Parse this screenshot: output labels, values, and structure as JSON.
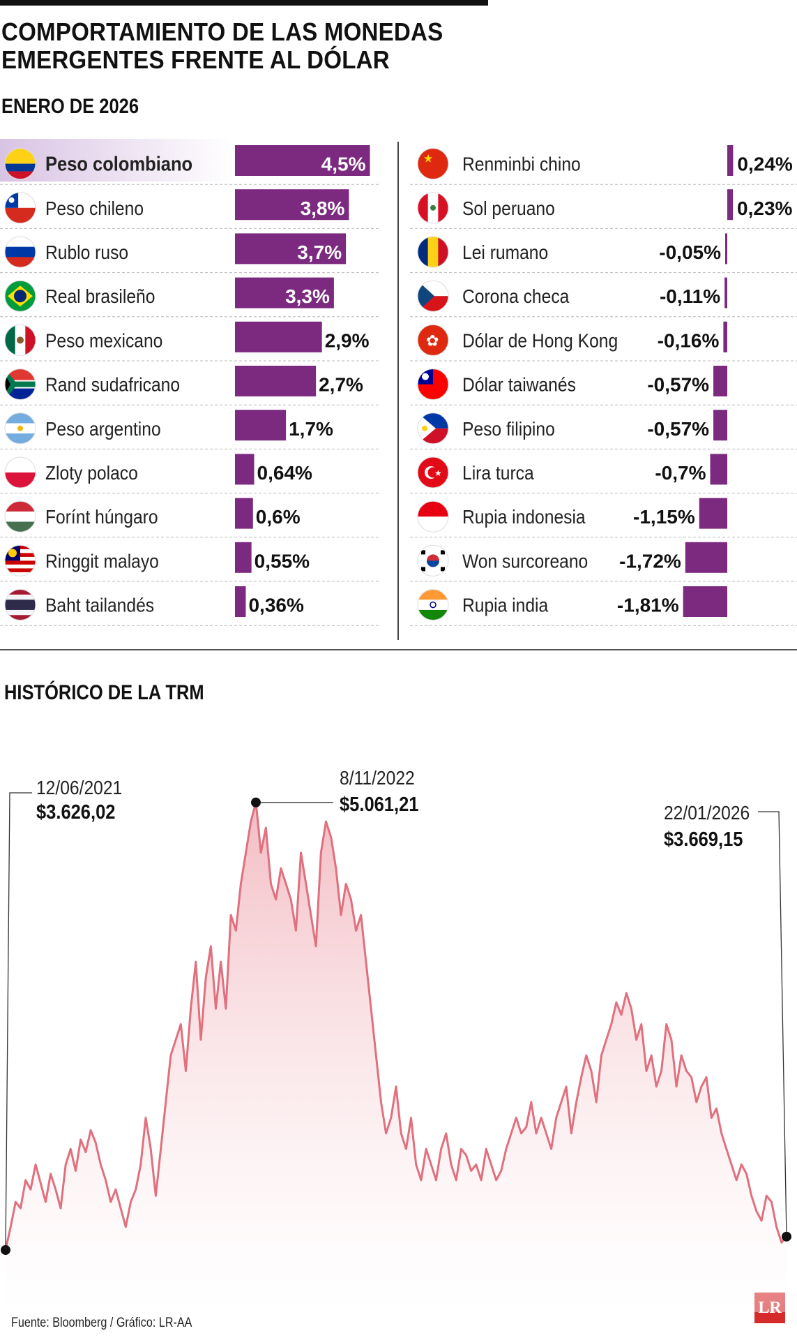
{
  "header": {
    "title_line1": "COMPORTAMIENTO DE LAS MONEDAS",
    "title_line2": "EMERGENTES FRENTE AL DÓLAR",
    "subtitle": "ENERO DE 2026"
  },
  "section2_title": "HISTÓRICO DE LA TRM",
  "source": "Fuente: Bloomberg / Gráfico: LR-AA",
  "logo_text": "LR",
  "colors": {
    "bar": "#7b2a80",
    "highlight": "#d9c3e3",
    "line": "#e0707e",
    "area": "#f2b9c0"
  },
  "chart_data": [
    {
      "type": "bar",
      "title": "ENERO DE 2026",
      "unit": "%",
      "categories": [
        "Peso colombiano",
        "Peso chileno",
        "Rublo ruso",
        "Real brasileño",
        "Peso mexicano",
        "Rand sudafricano",
        "Peso argentino",
        "Zloty polaco",
        "Forínt húngaro",
        "Ringgit malayo",
        "Baht tailandés"
      ],
      "values": [
        4.5,
        3.8,
        3.7,
        3.3,
        2.9,
        2.7,
        1.7,
        0.64,
        0.6,
        0.55,
        0.36
      ],
      "labels": [
        "4,5%",
        "3,8%",
        "3,7%",
        "3,3%",
        "2,9%",
        "2,7%",
        "1,7%",
        "0,64%",
        "0,6%",
        "0,55%",
        "0,36%"
      ],
      "flags": [
        "flag-colombia",
        "flag-chile",
        "flag-russia",
        "flag-brazil",
        "flag-mexico",
        "flag-south-africa",
        "flag-argentina",
        "flag-poland",
        "flag-hungary",
        "flag-malaysia",
        "flag-thailand"
      ],
      "highlight": "Peso colombiano"
    },
    {
      "type": "bar",
      "unit": "%",
      "categories": [
        "Renminbi chino",
        "Sol peruano",
        "Lei rumano",
        "Corona checa",
        "Dólar de Hong Kong",
        "Dólar taiwanés",
        "Peso filipino",
        "Lira turca",
        "Rupia indonesia",
        "Won surcoreano",
        "Rupia india"
      ],
      "values": [
        0.24,
        0.23,
        -0.05,
        -0.11,
        -0.16,
        -0.57,
        -0.57,
        -0.7,
        -1.15,
        -1.72,
        -1.81
      ],
      "labels": [
        "0,24%",
        "0,23%",
        "-0,05%",
        "-0,11%",
        "-0,16%",
        "-0,57%",
        "-0,57%",
        "-0,7%",
        "-1,15%",
        "-1,72%",
        "-1,81%"
      ],
      "flags": [
        "flag-china",
        "flag-peru",
        "flag-romania",
        "flag-czechia",
        "flag-hong-kong",
        "flag-taiwan",
        "flag-philippines",
        "flag-turkey",
        "flag-indonesia",
        "flag-south-korea",
        "flag-india"
      ]
    },
    {
      "type": "area",
      "title": "HISTÓRICO DE LA TRM",
      "annotations": [
        {
          "date": "12/06/2021",
          "value": "$3.626,02",
          "y": 3626.02
        },
        {
          "date": "8/11/2022",
          "value": "$5.061,21",
          "y": 5061.21
        },
        {
          "date": "22/01/2026",
          "value": "$3.669,15",
          "y": 3669.15
        }
      ],
      "x_range": [
        "12/06/2021",
        "22/01/2026"
      ],
      "ylim": [
        3550,
        5150
      ],
      "series": [
        {
          "values": [
            3626,
            3700,
            3780,
            3760,
            3850,
            3820,
            3900,
            3840,
            3780,
            3870,
            3820,
            3760,
            3900,
            3950,
            3880,
            3980,
            3940,
            4010,
            3970,
            3900,
            3850,
            3780,
            3820,
            3760,
            3700,
            3780,
            3820,
            3900,
            4050,
            3950,
            3800,
            3950,
            4100,
            4250,
            4300,
            4350,
            4200,
            4400,
            4550,
            4300,
            4500,
            4600,
            4400,
            4550,
            4400,
            4700,
            4650,
            4800,
            4900,
            5000,
            5061,
            4900,
            4980,
            4800,
            4750,
            4850,
            4800,
            4750,
            4650,
            4900,
            4800,
            4700,
            4600,
            4900,
            5000,
            4950,
            4850,
            4700,
            4800,
            4750,
            4650,
            4700,
            4550,
            4400,
            4250,
            4100,
            4000,
            4050,
            4150,
            4000,
            3950,
            4050,
            3900,
            3850,
            3950,
            3900,
            3850,
            3950,
            4000,
            3900,
            3850,
            3950,
            3930,
            3880,
            3900,
            3850,
            3950,
            3900,
            3850,
            3880,
            3950,
            4000,
            4050,
            4000,
            4020,
            4100,
            4000,
            4050,
            4000,
            3950,
            4050,
            4100,
            4150,
            4000,
            4100,
            4180,
            4250,
            4200,
            4100,
            4250,
            4300,
            4350,
            4420,
            4380,
            4450,
            4400,
            4300,
            4350,
            4200,
            4250,
            4150,
            4200,
            4350,
            4300,
            4150,
            4250,
            4200,
            4180,
            4100,
            4150,
            4180,
            4050,
            4080,
            4000,
            3950,
            3900,
            3850,
            3900,
            3870,
            3800,
            3750,
            3720,
            3800,
            3780,
            3700,
            3650,
            3669
          ]
        }
      ]
    }
  ]
}
